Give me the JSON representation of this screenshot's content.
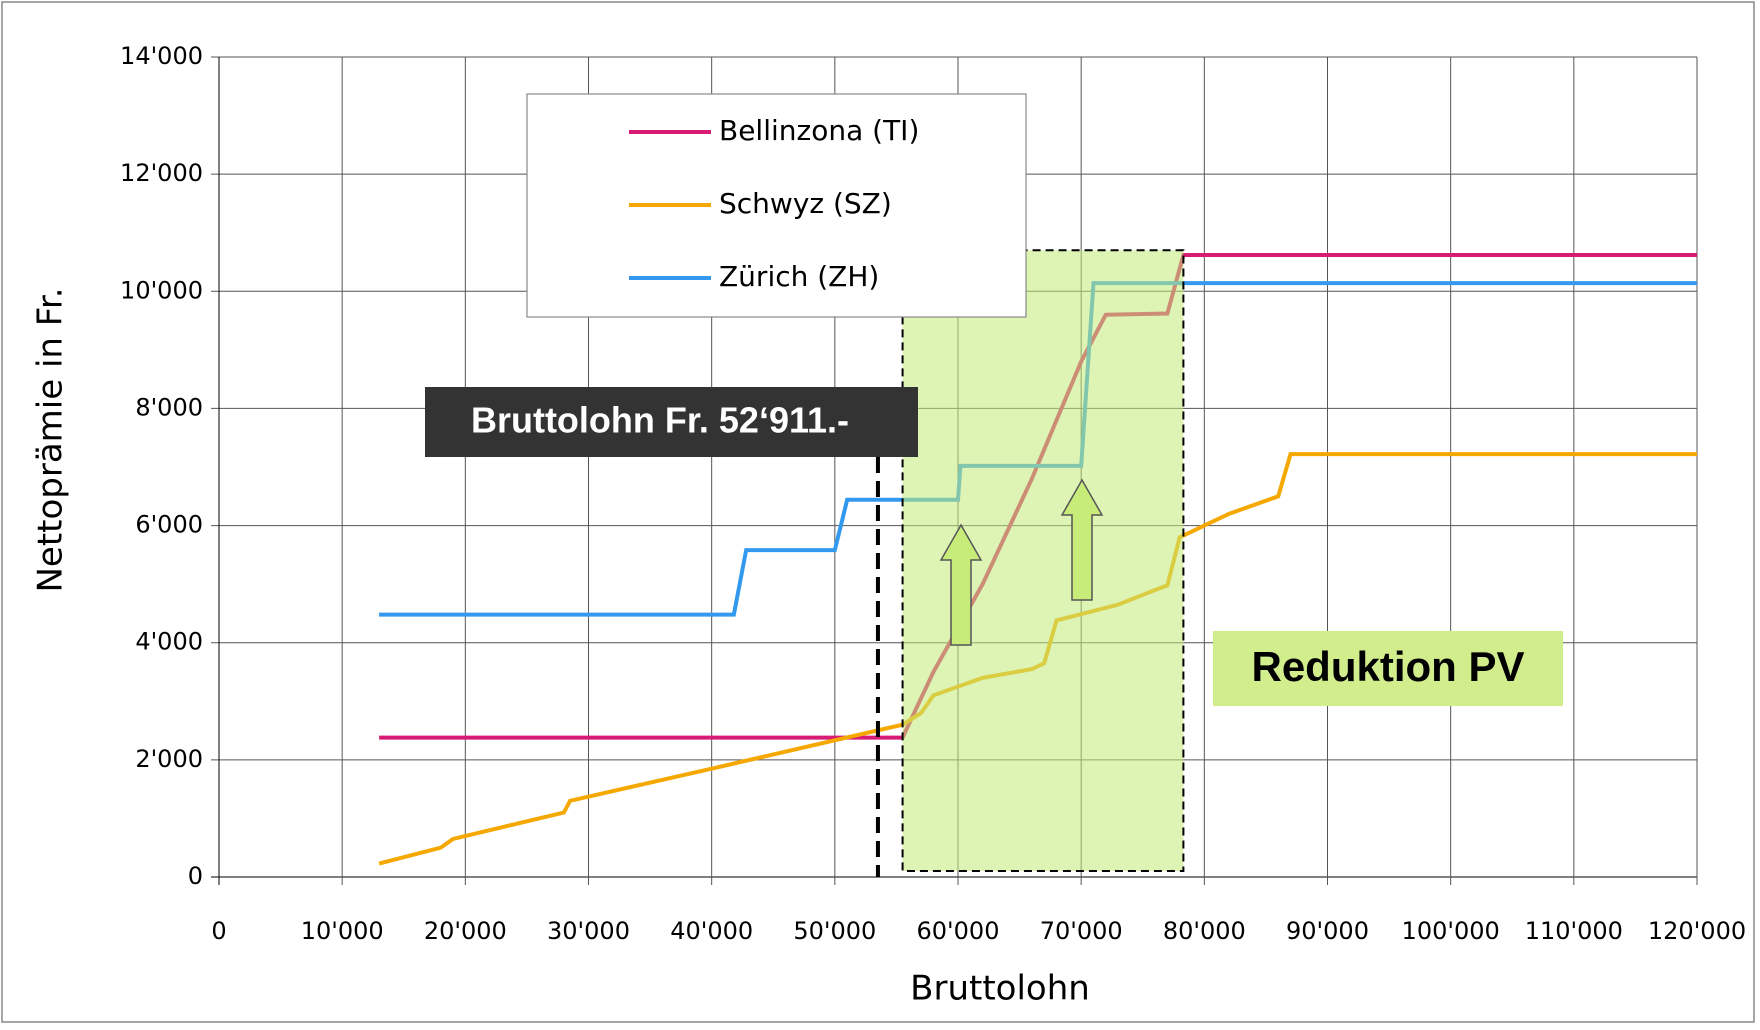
{
  "chart_data": {
    "type": "line",
    "xlabel": "Bruttolohn",
    "ylabel": "Nettoprämie in Fr.",
    "xlim": [
      0,
      120000
    ],
    "ylim": [
      0,
      14000
    ],
    "grid": true,
    "xticks": [
      0,
      {
        "value": 10000,
        "label": "10'000"
      },
      {
        "value": 20000,
        "label": "20'000"
      },
      {
        "value": 30000,
        "label": "30'000"
      },
      {
        "value": 40000,
        "label": "40'000"
      },
      {
        "value": 50000,
        "label": "50'000"
      },
      {
        "value": 60000,
        "label": "60'000"
      },
      {
        "value": 70000,
        "label": "70'000"
      },
      {
        "value": 80000,
        "label": "80'000"
      },
      {
        "value": 90000,
        "label": "90'000"
      },
      {
        "value": 100000,
        "label": "100'000"
      },
      {
        "value": 110000,
        "label": "110'000"
      },
      {
        "value": 120000,
        "label": "120'000"
      }
    ],
    "yticks": [
      0,
      {
        "value": 2000,
        "label": "2'000"
      },
      {
        "value": 4000,
        "label": "4'000"
      },
      {
        "value": 6000,
        "label": "6'000"
      },
      {
        "value": 8000,
        "label": "8'000"
      },
      {
        "value": 10000,
        "label": "10'000"
      },
      {
        "value": 12000,
        "label": "12'000"
      },
      {
        "value": 14000,
        "label": "14'000"
      }
    ],
    "series": [
      {
        "name": "Bellinzona (TI)",
        "color": "#d81b74",
        "x": [
          13000,
          55500,
          58000,
          62000,
          66000,
          68000,
          70000,
          72000,
          77000,
          78300,
          120000
        ],
        "values": [
          2380,
          2380,
          3500,
          5000,
          6800,
          7800,
          8800,
          9600,
          9620,
          10620,
          10620
        ]
      },
      {
        "name": "Schwyz (SZ)",
        "color": "#f5a800",
        "x": [
          13000,
          18000,
          19000,
          28000,
          28500,
          40000,
          55500,
          57000,
          58000,
          60000,
          62000,
          66000,
          67000,
          68000,
          73000,
          76000,
          77000,
          78000,
          82000,
          86000,
          87000,
          120000
        ],
        "values": [
          230,
          500,
          650,
          1100,
          1300,
          1850,
          2600,
          2800,
          3100,
          3250,
          3400,
          3550,
          3650,
          4380,
          4650,
          4900,
          4980,
          5800,
          6200,
          6500,
          7220,
          7220
        ]
      },
      {
        "name": "Zürich (ZH)",
        "color": "#3399ee",
        "x": [
          13000,
          41800,
          42800,
          50000,
          51000,
          60000,
          60200,
          70000,
          71000,
          120000
        ],
        "values": [
          4480,
          4480,
          5580,
          5580,
          6440,
          6440,
          7020,
          7020,
          10140,
          10140
        ]
      }
    ],
    "reference_line_x": 53500,
    "reference_label": "Bruttolohn Fr. 52‘911.-",
    "highlight": {
      "xlim": [
        55500,
        78300
      ],
      "ylim": [
        0,
        10700
      ]
    },
    "highlight_label": "Reduktion PV"
  }
}
